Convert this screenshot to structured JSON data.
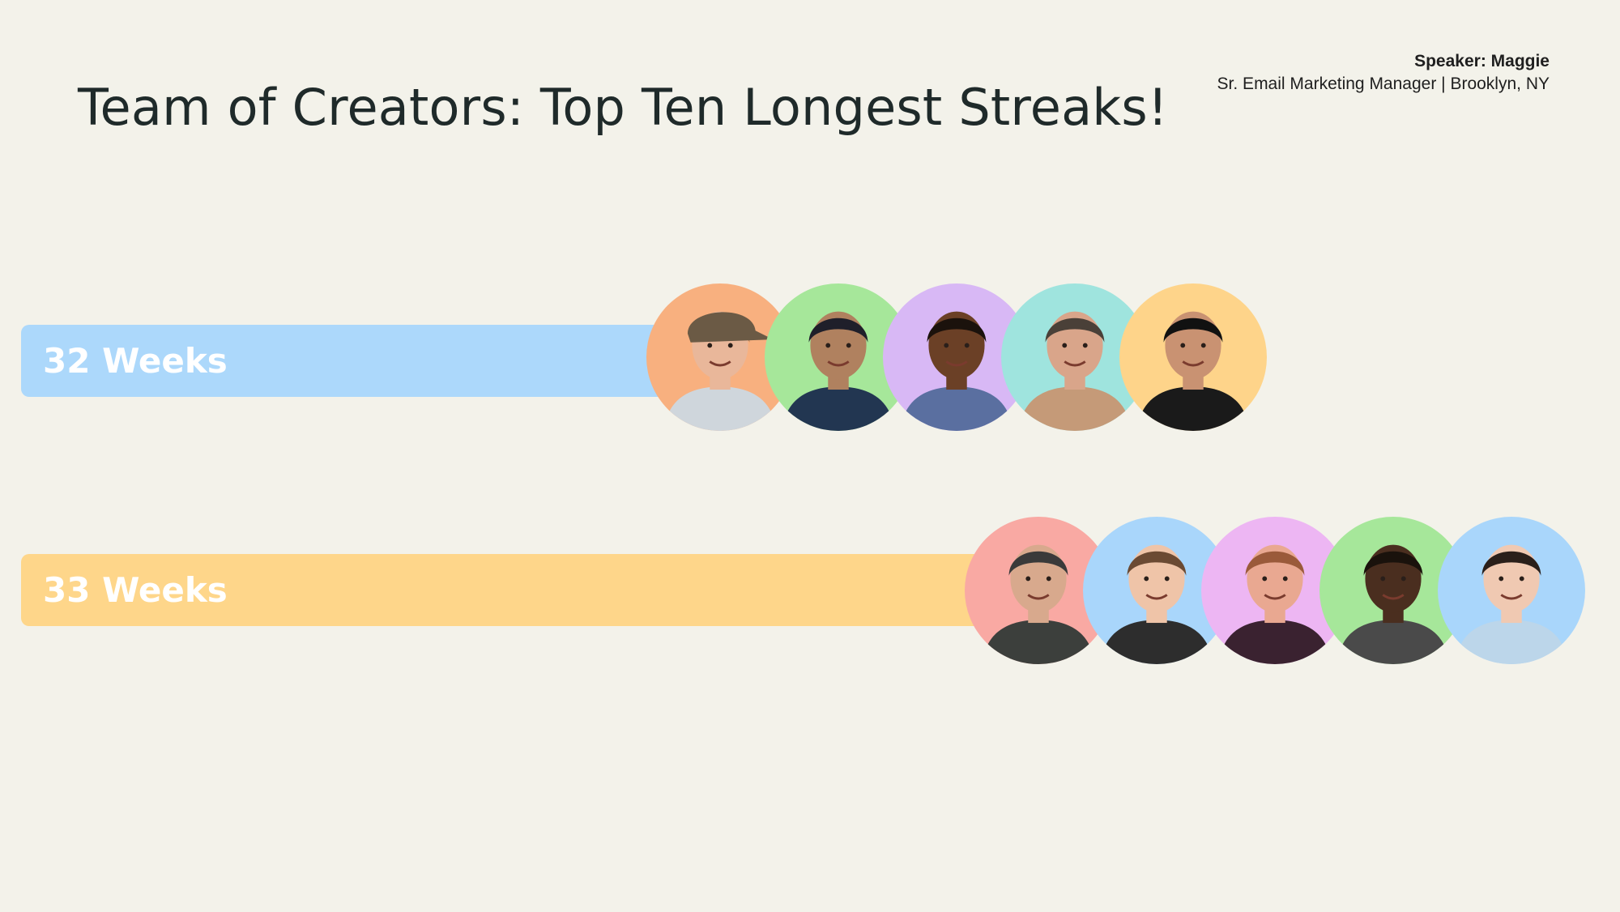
{
  "header": {
    "title": "Team of Creators: Top Ten Longest Streaks!",
    "speaker_name": "Speaker: Maggie",
    "speaker_details": "Sr. Email Marketing Manager  | Brooklyn, NY"
  },
  "rows": [
    {
      "label": "32 Weeks",
      "bar_color": "#acd8fb",
      "avatars": [
        {
          "bg": "#f8b07f",
          "skin": "#e9b79a",
          "hair": "#8a6a4e",
          "shirt": "#cfd6dc",
          "hat": "#6b5a45"
        },
        {
          "bg": "#a6e79a",
          "skin": "#b0815f",
          "hair": "#1f1f2a",
          "shirt": "#223651"
        },
        {
          "bg": "#d8b8f5",
          "skin": "#6b4026",
          "hair": "#1b120c",
          "shirt": "#5a6fa0"
        },
        {
          "bg": "#9fe4de",
          "skin": "#d9a58a",
          "hair": "#4a4038",
          "shirt": "#c59a78"
        },
        {
          "bg": "#fed48a",
          "skin": "#c99272",
          "hair": "#111111",
          "shirt": "#1a1a1a"
        }
      ]
    },
    {
      "label": "33 Weeks",
      "bar_color": "#fed68a",
      "avatars": [
        {
          "bg": "#f9a9a3",
          "skin": "#d8a98d",
          "hair": "#3a3a3a",
          "shirt": "#3c3f3c"
        },
        {
          "bg": "#a9d6fb",
          "skin": "#efc4a8",
          "hair": "#6b4a33",
          "shirt": "#2d2d2d"
        },
        {
          "bg": "#edb6f3",
          "skin": "#e9a891",
          "hair": "#9a5a3a",
          "shirt": "#3a2230"
        },
        {
          "bg": "#a6e79a",
          "skin": "#4a2e1f",
          "hair": "#1a120c",
          "shirt": "#4a4a4a"
        },
        {
          "bg": "#a9d6fb",
          "skin": "#f0c9b2",
          "hair": "#2a1f1a",
          "shirt": "#bcd6ea"
        }
      ]
    }
  ]
}
